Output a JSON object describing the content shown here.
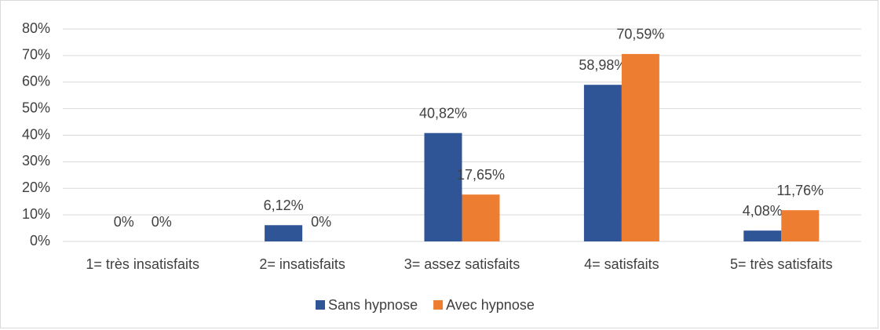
{
  "chart_data": {
    "type": "bar",
    "categories": [
      "1= très insatisfaits",
      "2= insatisfaits",
      "3= assez satisfaits",
      "4= satisfaits",
      "5= très satisfaits"
    ],
    "series": [
      {
        "name": "Sans hypnose",
        "color": "#2f5597",
        "values": [
          0,
          6.12,
          40.82,
          58.98,
          4.08
        ],
        "value_labels": [
          "0%",
          "6,12%",
          "40,82%",
          "58,98%",
          "4,08%"
        ]
      },
      {
        "name": "Avec hypnose",
        "color": "#ed7d31",
        "values": [
          0,
          0,
          17.65,
          70.59,
          11.76
        ],
        "value_labels": [
          "0%",
          "0%",
          "17,65%",
          "70,59%",
          "11,76%"
        ]
      }
    ],
    "ylim": [
      0,
      80
    ],
    "yticks": [
      {
        "value": 0,
        "label": "0%"
      },
      {
        "value": 10,
        "label": "10%"
      },
      {
        "value": 20,
        "label": "20%"
      },
      {
        "value": 30,
        "label": "30%"
      },
      {
        "value": 40,
        "label": "40%"
      },
      {
        "value": 50,
        "label": "50%"
      },
      {
        "value": 60,
        "label": "60%"
      },
      {
        "value": 70,
        "label": "70%"
      },
      {
        "value": 80,
        "label": "80%"
      }
    ],
    "grid": true,
    "legend": "bottom"
  }
}
